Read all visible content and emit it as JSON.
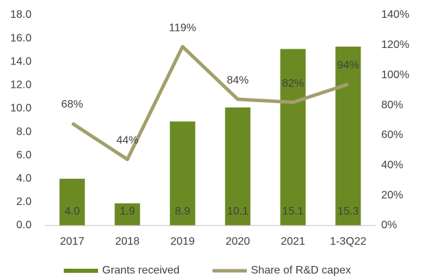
{
  "chart_data": {
    "type": "bar",
    "categories": [
      "2017",
      "2018",
      "2019",
      "2020",
      "2021",
      "1-3Q22"
    ],
    "series": [
      {
        "name": "Grants received",
        "type": "bar",
        "color": "#6b8a23",
        "values": [
          4.0,
          1.9,
          8.9,
          10.1,
          15.1,
          15.3
        ],
        "value_labels": [
          "4.0",
          "1.9",
          "8.9",
          "10.1",
          "15.1",
          "15.3"
        ]
      },
      {
        "name": "Share of R&D capex",
        "type": "line",
        "axis": "y2",
        "color": "#a39f6d",
        "values": [
          68,
          44,
          119,
          84,
          82,
          94
        ],
        "value_labels": [
          "68%",
          "44%",
          "119%",
          "84%",
          "82%",
          "94%"
        ]
      }
    ],
    "ylim": [
      0,
      18
    ],
    "yticks": [
      {
        "value": 0,
        "label": "0.0"
      },
      {
        "value": 2,
        "label": "2.0"
      },
      {
        "value": 4,
        "label": "4.0"
      },
      {
        "value": 6,
        "label": "6.0"
      },
      {
        "value": 8,
        "label": "8.0"
      },
      {
        "value": 10,
        "label": "10.0"
      },
      {
        "value": 12,
        "label": "12.0"
      },
      {
        "value": 14,
        "label": "14.0"
      },
      {
        "value": 16,
        "label": "16.0"
      },
      {
        "value": 18,
        "label": "18.0"
      }
    ],
    "y2lim": [
      0,
      140
    ],
    "y2ticks": [
      {
        "value": 0,
        "label": "0%"
      },
      {
        "value": 20,
        "label": "20%"
      },
      {
        "value": 40,
        "label": "40%"
      },
      {
        "value": 60,
        "label": "60%"
      },
      {
        "value": 80,
        "label": "80%"
      },
      {
        "value": 100,
        "label": "100%"
      },
      {
        "value": 120,
        "label": "120%"
      },
      {
        "value": 140,
        "label": "140%"
      }
    ],
    "grid": false,
    "legend": "bottom"
  }
}
